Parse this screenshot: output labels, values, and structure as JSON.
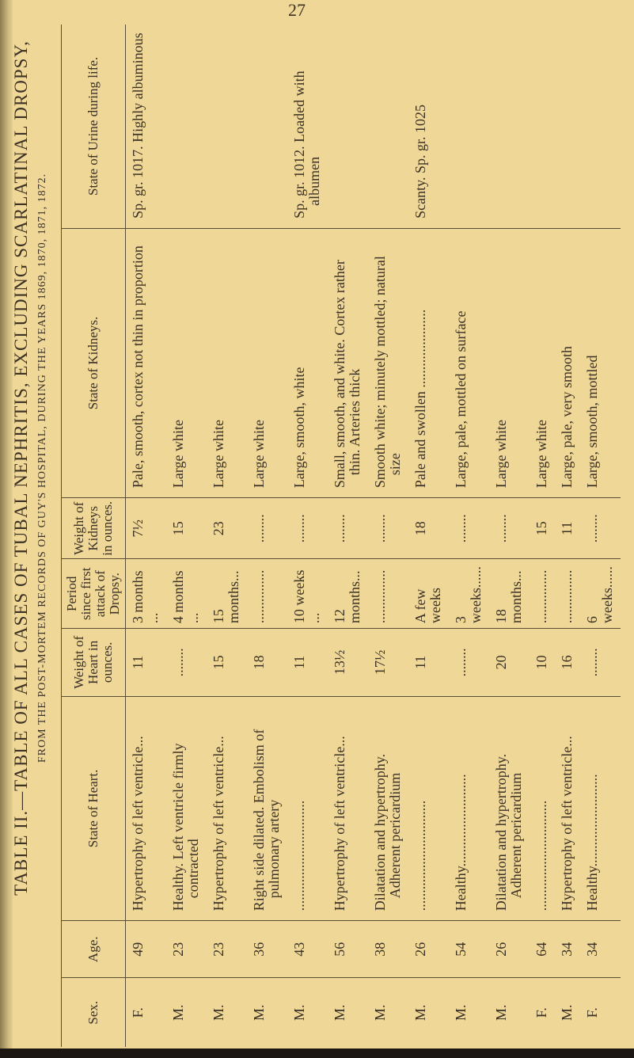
{
  "page_number": "27",
  "title": "TABLE II.—TABLE OF ALL CASES OF TUBAL NEPHRITIS, EXCLUDING SCARLATINAL DROPSY,",
  "subtitle": "FROM THE POST-MORTEM RECORDS OF GUY'S HOSPITAL, DURING THE YEARS 1869, 1870, 1871, 1872.",
  "columns": {
    "sex": "Sex.",
    "age": "Age.",
    "heart": "State of Heart.",
    "heart_weight": "Weight of Heart in ounces.",
    "period": "Period since first attack of Dropsy.",
    "kidney_weight": "Weight of Kidneys in ounces.",
    "kidneys": "State of Kidneys.",
    "urine": "State of Urine during life."
  },
  "rows": [
    {
      "sex": "F.",
      "age": "49",
      "heart": "Hypertrophy of left ventricle...",
      "heart_weight": "11",
      "period": "3 months ...",
      "kidney_weight": "7½",
      "kidneys": "Pale, smooth, cortex not thin in proportion",
      "urine": "Sp. gr. 1017. Highly albuminous"
    },
    {
      "sex": "M.",
      "age": "23",
      "heart": "Healthy. Left ventricle firmly contracted",
      "heart_weight": "........",
      "period": "4 months ...",
      "kidney_weight": "15",
      "kidneys": "Large white",
      "urine": ""
    },
    {
      "sex": "M.",
      "age": "23",
      "heart": "Hypertrophy of left ventricle...",
      "heart_weight": "15",
      "period": "15 months...",
      "kidney_weight": "23",
      "kidneys": "Large white",
      "urine": ""
    },
    {
      "sex": "M.",
      "age": "36",
      "heart": "Right side dilated. Embolism of pulmonary artery",
      "heart_weight": "18",
      "period": "...............",
      "kidney_weight": "........",
      "kidneys": "Large white",
      "urine": ""
    },
    {
      "sex": "M.",
      "age": "43",
      "heart": "...............................",
      "heart_weight": "11",
      "period": "10 weeks ...",
      "kidney_weight": "........",
      "kidneys": "Large, smooth, white",
      "urine": "Sp. gr. 1012. Loaded with albumen"
    },
    {
      "sex": "M.",
      "age": "56",
      "heart": "Hypertrophy of left ventricle...",
      "heart_weight": "13½",
      "period": "12 months...",
      "kidney_weight": "........",
      "kidneys": "Small, smooth, and white. Cortex rather thin. Arteries thick",
      "urine": ""
    },
    {
      "sex": "M.",
      "age": "38",
      "heart": "Dilatation and hypertrophy. Adherent pericardium",
      "heart_weight": "17½",
      "period": "...............",
      "kidney_weight": "........",
      "kidneys": "Smooth white; minutely mottled; natural size",
      "urine": ""
    },
    {
      "sex": "M.",
      "age": "26",
      "heart": "...............................",
      "heart_weight": "11",
      "period": "A few weeks",
      "kidney_weight": "18",
      "kidneys": "Pale and swollen ......................",
      "urine": "Scanty. Sp. gr. 1025"
    },
    {
      "sex": "M.",
      "age": "54",
      "heart": "Healthy..........................",
      "heart_weight": "........",
      "period": "3 weeks......",
      "kidney_weight": "........",
      "kidneys": "Large, pale, mottled on surface",
      "urine": ""
    },
    {
      "sex": "M.",
      "age": "26",
      "heart": "Dilatation and hypertrophy. Adherent pericardium",
      "heart_weight": "20",
      "period": "18 months...",
      "kidney_weight": "........",
      "kidneys": "Large white",
      "urine": ""
    },
    {
      "sex": "F.",
      "age": "64",
      "heart": "...............................",
      "heart_weight": "10",
      "period": "...............",
      "kidney_weight": "15",
      "kidneys": "Large white",
      "urine": ""
    },
    {
      "sex": "M.",
      "age": "34",
      "heart": "Hypertrophy of left ventricle...",
      "heart_weight": "16",
      "period": "...............",
      "kidney_weight": "11",
      "kidneys": "Large, pale, very smooth",
      "urine": ""
    },
    {
      "sex": "F.",
      "age": "34",
      "heart": "Healthy..........................",
      "heart_weight": "........",
      "period": "6 weeks......",
      "kidney_weight": "........",
      "kidneys": "Large, smooth, mottled",
      "urine": ""
    }
  ],
  "colors": {
    "paper": "#efd798",
    "ink": "#3b3124"
  }
}
